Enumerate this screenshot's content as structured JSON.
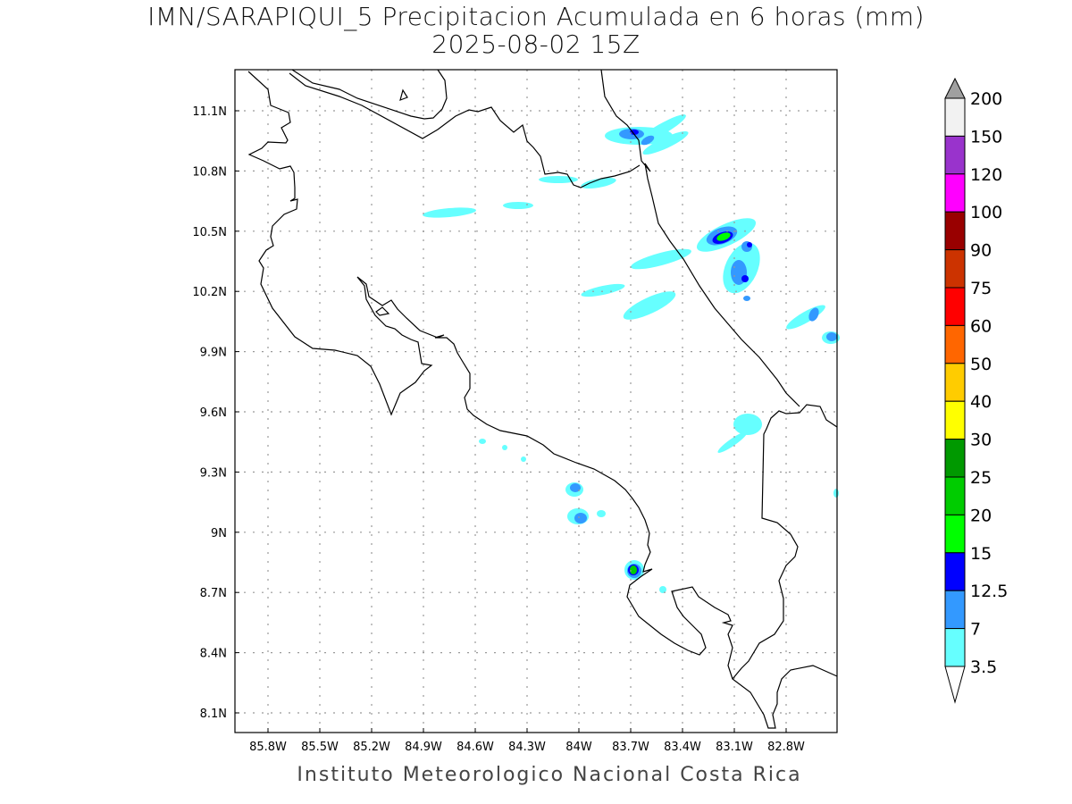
{
  "title": {
    "line1": "IMN/SARAPIQUI_5 Precipitacion Acumulada en 6 horas (mm)",
    "line2": "2025-08-02 15Z"
  },
  "footer": "Instituto Meteorologico Nacional Costa Rica",
  "axes": {
    "lat_labels": [
      "11.1N",
      "10.8N",
      "10.5N",
      "10.2N",
      "9.9N",
      "9.6N",
      "9.3N",
      "9N",
      "8.7N",
      "8.4N",
      "8.1N"
    ],
    "lon_labels": [
      "85.8W",
      "85.5W",
      "85.2W",
      "84.9W",
      "84.6W",
      "84.3W",
      "84W",
      "83.7W",
      "83.4W",
      "83.1W",
      "82.8W"
    ]
  },
  "colorbar": {
    "labels": [
      "200",
      "150",
      "120",
      "100",
      "90",
      "75",
      "60",
      "50",
      "40",
      "30",
      "25",
      "20",
      "15",
      "12.5",
      "7",
      "3.5"
    ],
    "colors": [
      "#f2f2f2",
      "#9933cc",
      "#ff00ff",
      "#990000",
      "#cc3300",
      "#ff0000",
      "#ff6600",
      "#ffcc00",
      "#ffff00",
      "#009900",
      "#00cc00",
      "#00ff00",
      "#0000ff",
      "#3399ff",
      "#66ffff"
    ],
    "over_color": "#a0a0a0",
    "under_color": "#ffffff"
  }
}
